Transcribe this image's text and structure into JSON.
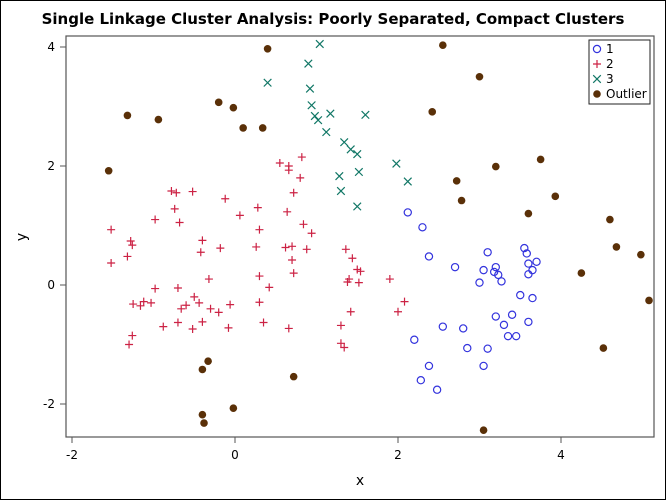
{
  "chart_data": {
    "type": "scatter",
    "title": "Single Linkage Cluster Analysis: Poorly Separated, Compact Clusters",
    "xlabel": "x",
    "ylabel": "y",
    "xlim": [
      -2.05,
      5.15
    ],
    "ylim": [
      -2.55,
      4.15
    ],
    "xticks": [
      -2,
      0,
      2,
      4
    ],
    "yticks": [
      -2,
      0,
      2,
      4
    ],
    "grid": false,
    "legend_position": "upper-right-inside",
    "series": [
      {
        "name": "1",
        "marker": "circle-open",
        "color": "#3333dd",
        "points": [
          [
            2.12,
            1.22
          ],
          [
            2.3,
            0.97
          ],
          [
            2.38,
            0.48
          ],
          [
            2.7,
            0.3
          ],
          [
            2.2,
            -0.92
          ],
          [
            2.55,
            -0.7
          ],
          [
            2.8,
            -0.73
          ],
          [
            2.28,
            -1.6
          ],
          [
            2.38,
            -1.36
          ],
          [
            2.48,
            -1.76
          ],
          [
            2.85,
            -1.06
          ],
          [
            3.05,
            -1.36
          ],
          [
            3.1,
            -1.07
          ],
          [
            3.0,
            0.04
          ],
          [
            3.05,
            0.25
          ],
          [
            3.1,
            0.55
          ],
          [
            3.18,
            0.22
          ],
          [
            3.2,
            0.3
          ],
          [
            3.23,
            0.17
          ],
          [
            3.27,
            0.06
          ],
          [
            3.2,
            -0.53
          ],
          [
            3.3,
            -0.67
          ],
          [
            3.35,
            -0.86
          ],
          [
            3.4,
            -0.5
          ],
          [
            3.5,
            -0.17
          ],
          [
            3.55,
            0.62
          ],
          [
            3.58,
            0.53
          ],
          [
            3.6,
            0.36
          ],
          [
            3.6,
            0.18
          ],
          [
            3.65,
            0.25
          ],
          [
            3.7,
            0.39
          ],
          [
            3.65,
            -0.22
          ],
          [
            3.6,
            -0.62
          ],
          [
            3.45,
            -0.86
          ]
        ]
      },
      {
        "name": "2",
        "marker": "plus",
        "color": "#cc2244",
        "points": [
          [
            -1.52,
            0.93
          ],
          [
            -1.52,
            0.37
          ],
          [
            -1.32,
            0.48
          ],
          [
            -1.28,
            0.74
          ],
          [
            -1.26,
            0.67
          ],
          [
            -1.3,
            -1.0
          ],
          [
            -1.26,
            -0.85
          ],
          [
            -1.25,
            -0.32
          ],
          [
            -1.16,
            -0.35
          ],
          [
            -1.12,
            -0.28
          ],
          [
            -1.03,
            -0.3
          ],
          [
            -0.98,
            -0.06
          ],
          [
            -0.98,
            1.1
          ],
          [
            -0.88,
            -0.7
          ],
          [
            -0.78,
            1.58
          ],
          [
            -0.72,
            1.55
          ],
          [
            -0.74,
            1.28
          ],
          [
            -0.68,
            1.05
          ],
          [
            -0.7,
            -0.05
          ],
          [
            -0.7,
            -0.63
          ],
          [
            -0.66,
            -0.4
          ],
          [
            -0.6,
            -0.34
          ],
          [
            -0.52,
            1.57
          ],
          [
            -0.52,
            -0.74
          ],
          [
            -0.5,
            -0.2
          ],
          [
            -0.44,
            -0.3
          ],
          [
            -0.42,
            0.55
          ],
          [
            -0.4,
            0.75
          ],
          [
            -0.4,
            -0.62
          ],
          [
            -0.32,
            0.1
          ],
          [
            -0.3,
            -0.4
          ],
          [
            -0.2,
            -0.46
          ],
          [
            -0.18,
            0.62
          ],
          [
            -0.12,
            1.45
          ],
          [
            -0.08,
            -0.72
          ],
          [
            -0.06,
            -0.33
          ],
          [
            0.06,
            1.17
          ],
          [
            0.28,
            1.3
          ],
          [
            0.26,
            0.64
          ],
          [
            0.3,
            0.93
          ],
          [
            0.3,
            0.15
          ],
          [
            0.3,
            -0.29
          ],
          [
            0.35,
            -0.63
          ],
          [
            0.42,
            -0.04
          ],
          [
            0.55,
            2.05
          ],
          [
            0.62,
            0.63
          ],
          [
            0.64,
            1.23
          ],
          [
            0.66,
            2.0
          ],
          [
            0.66,
            1.93
          ],
          [
            0.7,
            0.42
          ],
          [
            0.7,
            0.65
          ],
          [
            0.72,
            0.2
          ],
          [
            0.72,
            1.55
          ],
          [
            0.8,
            1.8
          ],
          [
            0.82,
            2.15
          ],
          [
            0.84,
            1.02
          ],
          [
            0.88,
            0.6
          ],
          [
            0.66,
            -0.73
          ],
          [
            0.94,
            0.87
          ],
          [
            1.3,
            -0.68
          ],
          [
            1.3,
            -0.98
          ],
          [
            1.34,
            -1.05
          ],
          [
            1.36,
            0.6
          ],
          [
            1.38,
            0.05
          ],
          [
            1.4,
            0.1
          ],
          [
            1.42,
            -0.45
          ],
          [
            1.44,
            0.45
          ],
          [
            1.5,
            0.26
          ],
          [
            1.52,
            0.04
          ],
          [
            1.54,
            0.23
          ],
          [
            1.9,
            0.1
          ],
          [
            2.0,
            -0.45
          ],
          [
            2.08,
            -0.28
          ]
        ]
      },
      {
        "name": "3",
        "marker": "x",
        "color": "#117766",
        "points": [
          [
            0.4,
            3.4
          ],
          [
            0.9,
            3.72
          ],
          [
            0.92,
            3.3
          ],
          [
            0.94,
            3.02
          ],
          [
            0.98,
            2.84
          ],
          [
            1.02,
            2.77
          ],
          [
            1.04,
            4.05
          ],
          [
            1.12,
            2.57
          ],
          [
            1.17,
            2.88
          ],
          [
            1.28,
            1.83
          ],
          [
            1.3,
            1.58
          ],
          [
            1.34,
            2.4
          ],
          [
            1.42,
            2.28
          ],
          [
            1.5,
            1.32
          ],
          [
            1.52,
            1.9
          ],
          [
            1.5,
            2.2
          ],
          [
            1.6,
            2.86
          ],
          [
            1.98,
            2.04
          ],
          [
            2.12,
            1.74
          ]
        ]
      },
      {
        "name": "Outlier",
        "marker": "circle-filled",
        "color": "#5a3008",
        "points": [
          [
            -1.55,
            1.92
          ],
          [
            -1.32,
            2.85
          ],
          [
            -0.94,
            2.78
          ],
          [
            -0.2,
            3.07
          ],
          [
            -0.02,
            2.98
          ],
          [
            0.1,
            2.64
          ],
          [
            0.34,
            2.64
          ],
          [
            0.4,
            3.97
          ],
          [
            2.42,
            2.91
          ],
          [
            2.55,
            4.03
          ],
          [
            3.0,
            3.5
          ],
          [
            2.72,
            1.75
          ],
          [
            2.78,
            1.42
          ],
          [
            3.2,
            1.99
          ],
          [
            3.75,
            2.11
          ],
          [
            3.6,
            1.2
          ],
          [
            3.93,
            1.49
          ],
          [
            4.6,
            1.1
          ],
          [
            4.68,
            0.64
          ],
          [
            4.25,
            0.2
          ],
          [
            4.98,
            0.51
          ],
          [
            5.08,
            -0.26
          ],
          [
            4.52,
            -1.06
          ],
          [
            -0.4,
            -1.42
          ],
          [
            -0.33,
            -1.28
          ],
          [
            -0.4,
            -2.18
          ],
          [
            -0.38,
            -2.32
          ],
          [
            -0.02,
            -2.07
          ],
          [
            0.72,
            -1.54
          ],
          [
            3.05,
            -2.44
          ]
        ]
      }
    ]
  },
  "legend": {
    "items": [
      {
        "label": "1"
      },
      {
        "label": "2"
      },
      {
        "label": "3"
      },
      {
        "label": "Outlier"
      }
    ]
  },
  "axes": {
    "x": {
      "label": "x",
      "ticks": [
        "-2",
        "0",
        "2",
        "4"
      ]
    },
    "y": {
      "label": "y",
      "ticks": [
        "-2",
        "0",
        "2",
        "4"
      ]
    }
  }
}
